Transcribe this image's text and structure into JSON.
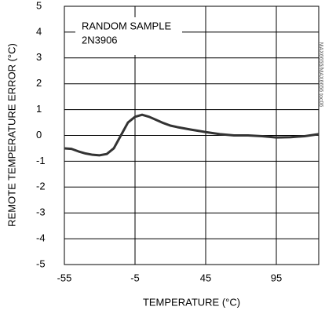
{
  "chart_data": {
    "type": "line",
    "annotation": [
      "RANDOM SAMPLE",
      "2N3906"
    ],
    "side_note": "MAX6655/MAX6656 toc06",
    "x_label": "TEMPERATURE (°C)",
    "y_label": "REMOTE TEMPERATURE ERROR (°C)",
    "x": [
      -55,
      -50,
      -45,
      -40,
      -35,
      -30,
      -25,
      -20,
      -15,
      -10,
      -5,
      0,
      5,
      10,
      15,
      20,
      25,
      35,
      45,
      55,
      65,
      75,
      85,
      95,
      105,
      115,
      125
    ],
    "series": [
      {
        "color": "#333333",
        "values": [
          -0.5,
          -0.52,
          -0.62,
          -0.7,
          -0.75,
          -0.77,
          -0.72,
          -0.5,
          0.0,
          0.5,
          0.72,
          0.8,
          0.72,
          0.6,
          0.48,
          0.38,
          0.32,
          0.22,
          0.13,
          0.05,
          0.0,
          0.0,
          -0.03,
          -0.08,
          -0.07,
          -0.03,
          0.05
        ]
      }
    ],
    "xlim": [
      -55,
      125
    ],
    "xticks": [
      -55,
      -5,
      45,
      95
    ],
    "ylim": [
      -5,
      5
    ],
    "yticks": [
      -5,
      -4,
      -3,
      -2,
      -1,
      0,
      1,
      2,
      3,
      4,
      5
    ],
    "grid": true
  }
}
